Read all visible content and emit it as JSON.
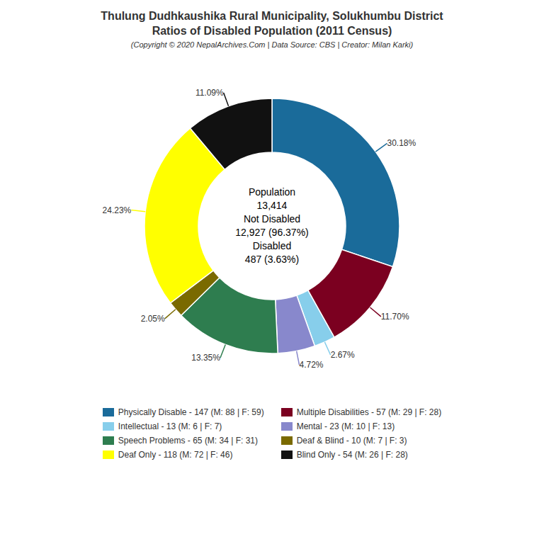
{
  "chart_data": {
    "type": "pie",
    "title": [
      "Thulung Dudhkaushika Rural Municipality, Solukhumbu District",
      "Ratios of Disabled Population (2011 Census)"
    ],
    "subtitle": "(Copyright © 2020 NepalArchives.Com | Data Source: CBS | Creator: Milan Karki)",
    "categories": [
      "Physically Disable - 147 (M: 88 | F: 59)",
      "Multiple Disabilities - 57 (M: 29 | F: 28)",
      "Intellectual - 13 (M: 6 | F: 7)",
      "Mental - 23 (M: 10 | F: 13)",
      "Speech Problems - 65 (M: 34 | F: 31)",
      "Deaf & Blind - 10 (M: 7 | F: 3)",
      "Deaf Only - 118 (M: 72 | F: 46)",
      "Blind Only - 54 (M: 26 | F: 28)"
    ],
    "values": [
      30.18,
      11.7,
      2.67,
      4.72,
      13.35,
      2.05,
      24.23,
      11.09
    ],
    "value_labels": [
      "30.18%",
      "11.70%",
      "2.67%",
      "4.72%",
      "13.35%",
      "2.05%",
      "24.23%",
      "11.09%"
    ],
    "colors": [
      "#1a6b9a",
      "#7b0020",
      "#87ceeb",
      "#8888cc",
      "#2e7d4f",
      "#7a6a00",
      "#ffff00",
      "#111111"
    ],
    "data_labels": true,
    "legend": "bottom",
    "annotations": [
      "Population",
      "13,414",
      "Not Disabled",
      "12,927 (96.37%)",
      "Disabled",
      "487 (3.63%)"
    ]
  }
}
